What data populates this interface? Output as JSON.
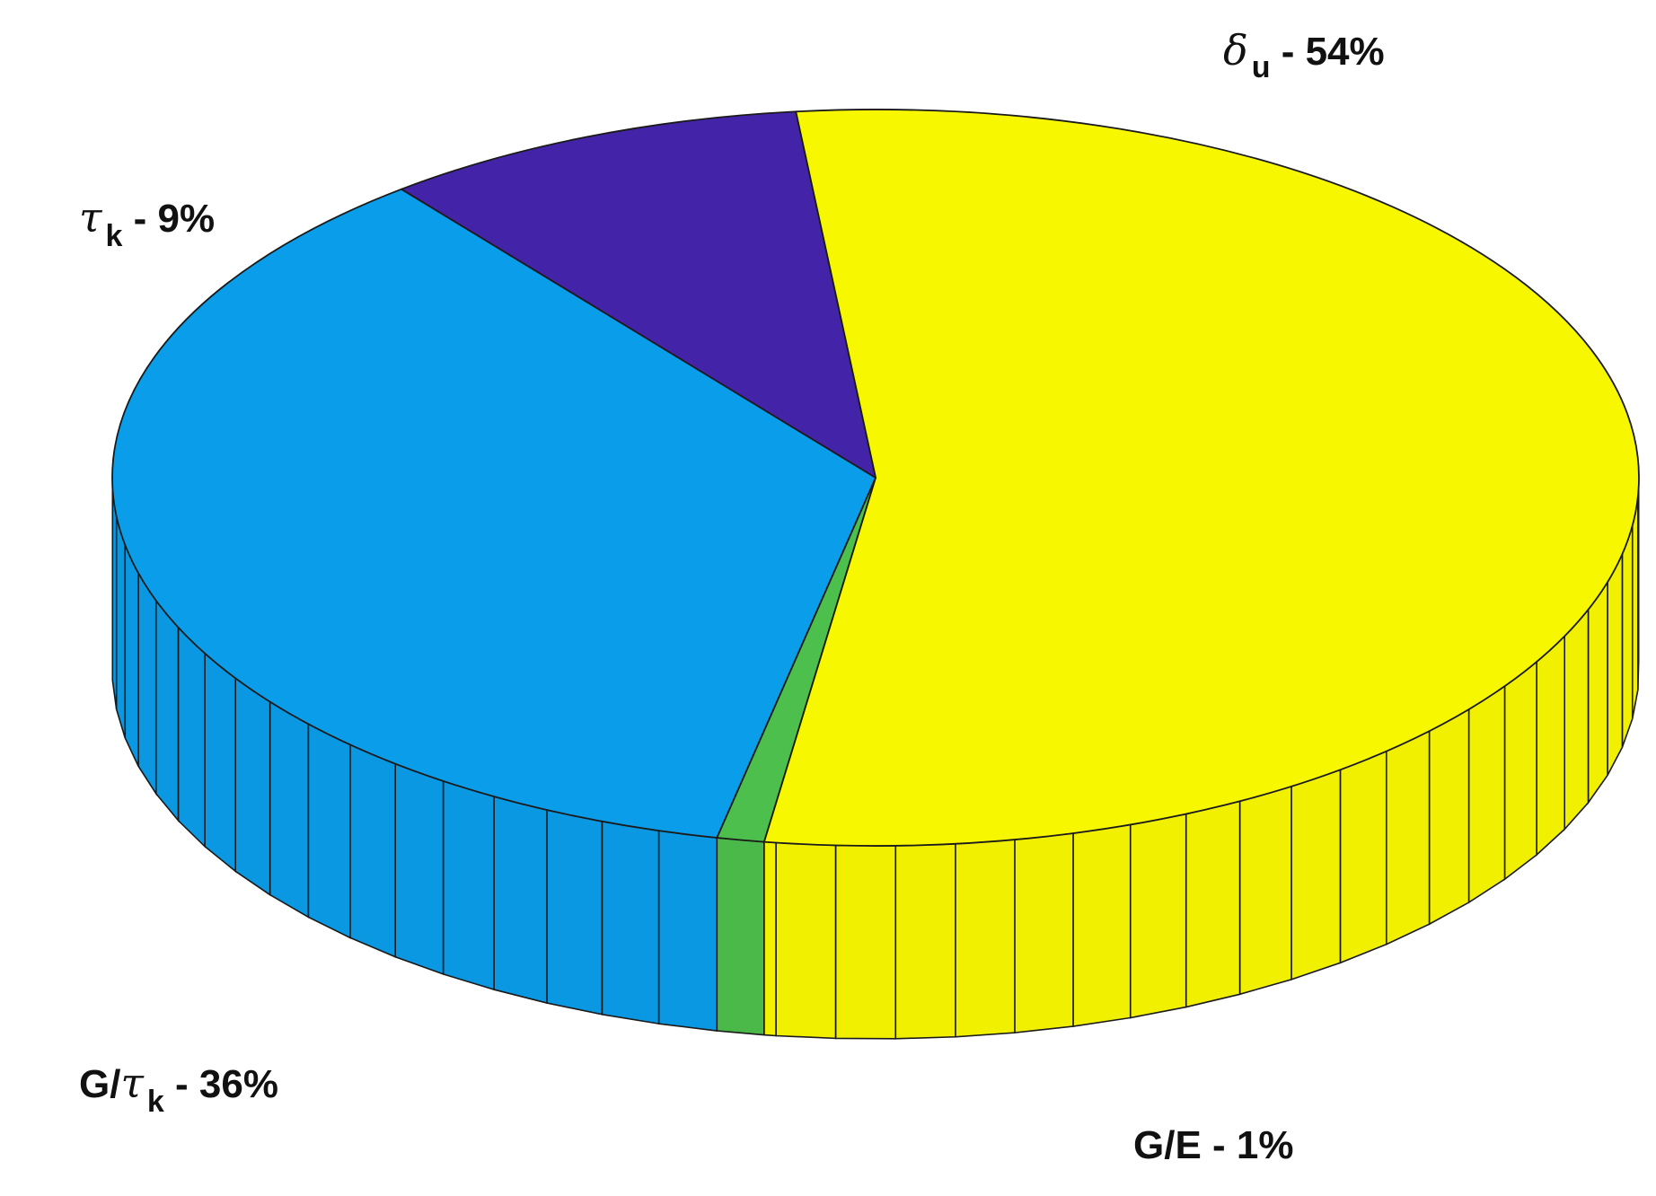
{
  "chart_data": {
    "type": "pie",
    "style": "3d",
    "slices": [
      {
        "symbol": "δ",
        "subscript": "u",
        "text": " - 54%",
        "value": 54,
        "color": "#f7f700"
      },
      {
        "symbol": "τ",
        "subscript": "k",
        "text": " - 9%",
        "value": 9,
        "color": "#4324a9"
      },
      {
        "prefix": "G/",
        "symbol": "τ",
        "subscript": "k",
        "text": " - 36%",
        "value": 36,
        "color": "#0a9de9"
      },
      {
        "prefix": "G/E",
        "text": " - 1%",
        "value": 1,
        "color": "#4cbf4c"
      }
    ]
  }
}
